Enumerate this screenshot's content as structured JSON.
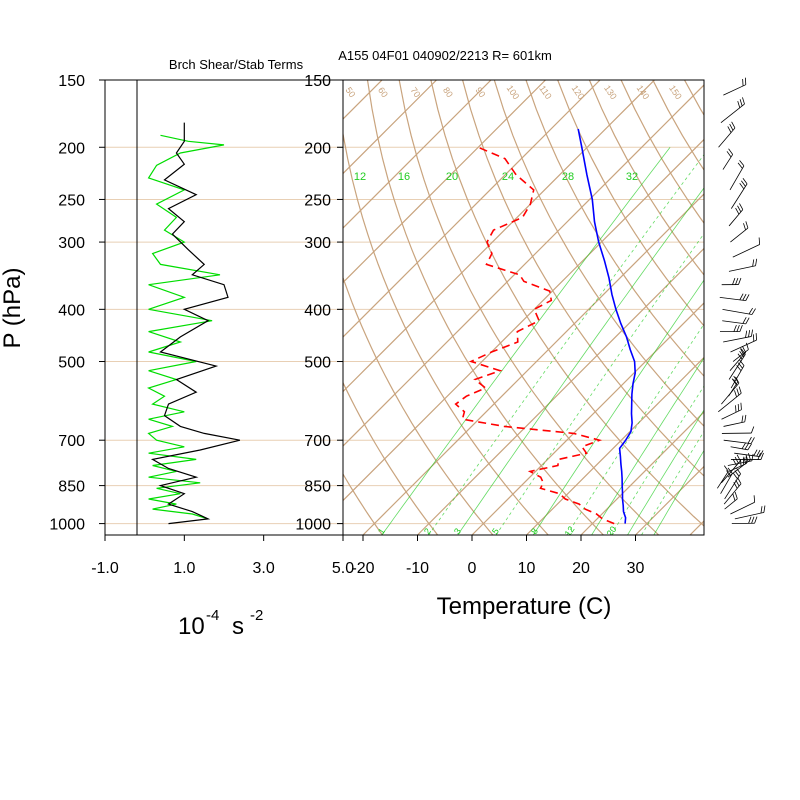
{
  "colors": {
    "temperature": "#0000ff",
    "dewpoint": "#ff0000",
    "shear_term": "#000000",
    "stability_term": "#00dd00",
    "skewt_grid": "#c9a47e",
    "mixing_ratio": "#22cc22",
    "pressure_grid": "#e8cfb4"
  },
  "chart_data": [
    {
      "type": "line",
      "title": "Brch Shear/Stab Terms",
      "ylabel": "P (hPa)",
      "xlabel_base": "10",
      "xlabel_exp": "-4",
      "xlabel_unit": "s",
      "xlabel_unit_exp": "-2",
      "y_log_scale": true,
      "y_inverted": true,
      "ylim": [
        1050,
        150
      ],
      "xlim": [
        -1.0,
        5.0
      ],
      "x_ticks": [
        "-1.0",
        "1.0",
        "3.0",
        "5.0"
      ],
      "y_ticks": [
        "150",
        "200",
        "250",
        "300",
        "400",
        "500",
        "700",
        "850",
        "1000"
      ],
      "series": [
        {
          "key": "shear",
          "pressure": [
            1000,
            980,
            950,
            920,
            880,
            850,
            820,
            790,
            760,
            730,
            700,
            680,
            660,
            630,
            600,
            570,
            540,
            510,
            480,
            450,
            420,
            400,
            380,
            360,
            345,
            330,
            310,
            290,
            275,
            260,
            245,
            230,
            215,
            205,
            195,
            180
          ],
          "values": [
            0.6,
            1.6,
            1.2,
            0.6,
            1.0,
            0.4,
            1.3,
            0.6,
            0.2,
            1.4,
            2.4,
            1.5,
            0.9,
            0.5,
            0.6,
            1.3,
            0.8,
            1.8,
            0.4,
            0.9,
            1.6,
            1.0,
            2.1,
            2.0,
            1.2,
            1.5,
            1.1,
            0.7,
            1.0,
            0.6,
            1.3,
            0.5,
            1.0,
            0.8,
            1.0,
            1.0
          ]
        },
        {
          "key": "stability",
          "pressure": [
            980,
            960,
            940,
            920,
            900,
            880,
            860,
            840,
            820,
            800,
            780,
            760,
            740,
            720,
            700,
            680,
            660,
            640,
            620,
            600,
            580,
            560,
            540,
            520,
            500,
            480,
            460,
            440,
            420,
            400,
            380,
            360,
            345,
            330,
            315,
            300,
            285,
            270,
            255,
            240,
            228,
            216,
            205,
            198,
            195,
            190
          ],
          "values": [
            1.6,
            1.2,
            0.2,
            0.8,
            0.1,
            0.9,
            0.3,
            1.4,
            0.1,
            0.8,
            0.2,
            1.3,
            0.1,
            1.0,
            0.3,
            0.1,
            0.7,
            0.1,
            1.0,
            0.2,
            0.5,
            0.1,
            0.8,
            0.1,
            1.3,
            0.1,
            0.9,
            0.1,
            1.7,
            0.1,
            1.0,
            0.1,
            1.9,
            0.4,
            0.2,
            1.0,
            0.5,
            0.8,
            0.3,
            1.0,
            0.1,
            0.3,
            0.9,
            2.0,
            1.1,
            0.4
          ]
        }
      ]
    },
    {
      "type": "line",
      "title": "A155 04F01 040902/2213 R= 601km",
      "xlabel": "Temperature (C)",
      "y_log_scale": true,
      "y_inverted": true,
      "ylim": [
        1050,
        150
      ],
      "xlim": [
        -24,
        40
      ],
      "skew": "skew-T log-P",
      "x_ticks": [
        "-20",
        "-10",
        "0",
        "10",
        "20",
        "30"
      ],
      "y_ticks": [
        "150",
        "200",
        "250",
        "300",
        "400",
        "500",
        "700",
        "850",
        "1000"
      ],
      "isotherm_ticks_top": [
        "50",
        "60",
        "70",
        "80",
        "90",
        "100",
        "110",
        "120",
        "130",
        "140",
        "150"
      ],
      "mixing_ratio_top_labels": [
        "12",
        "16",
        "20",
        "24",
        "28",
        "32"
      ],
      "mixing_ratio_bottom_labels": [
        "1",
        "2",
        "3",
        "5",
        "8",
        "12",
        "20"
      ],
      "series": [
        {
          "key": "temperature",
          "pressure": [
            1000,
            975,
            950,
            925,
            900,
            875,
            850,
            825,
            800,
            775,
            750,
            725,
            700,
            675,
            650,
            625,
            600,
            575,
            550,
            525,
            500,
            475,
            450,
            425,
            400,
            375,
            350,
            325,
            300,
            275,
            250,
            225,
            200,
            185
          ],
          "temp": [
            26.0,
            25.0,
            23.5,
            22.3,
            21.0,
            19.8,
            18.5,
            17.2,
            15.8,
            14.3,
            12.8,
            11.2,
            10.8,
            10.2,
            8.8,
            7.0,
            5.3,
            3.5,
            1.8,
            0.2,
            -2.0,
            -5.0,
            -8.0,
            -11.5,
            -15.0,
            -18.5,
            -22.0,
            -26.0,
            -30.5,
            -35.0,
            -39.5,
            -45.0,
            -51.0,
            -55.0
          ]
        },
        {
          "key": "dewpoint",
          "pressure": [
            1000,
            980,
            960,
            940,
            920,
            900,
            880,
            860,
            840,
            820,
            800,
            780,
            760,
            740,
            720,
            700,
            680,
            660,
            640,
            620,
            600,
            580,
            560,
            540,
            520,
            500,
            480,
            460,
            440,
            420,
            400,
            385,
            370,
            355,
            345,
            330,
            315,
            300,
            285,
            270,
            255,
            240,
            225,
            210,
            200
          ],
          "temp": [
            24.0,
            21.0,
            19.0,
            16.0,
            14.0,
            10.5,
            8.5,
            4.0,
            3.5,
            2.0,
            -1.0,
            3.0,
            2.0,
            6.0,
            4.0,
            6.0,
            0.0,
            -14.0,
            -23.0,
            -24.0,
            -27.0,
            -26.5,
            -24.5,
            -28.0,
            -25.0,
            -32.0,
            -30.0,
            -27.0,
            -29.0,
            -27.0,
            -30.0,
            -28.5,
            -30.5,
            -37.0,
            -39.0,
            -47.0,
            -48.0,
            -51.0,
            -52.0,
            -49.0,
            -50.0,
            -52.0,
            -58.0,
            -63.0,
            -70.0
          ]
        }
      ]
    }
  ]
}
